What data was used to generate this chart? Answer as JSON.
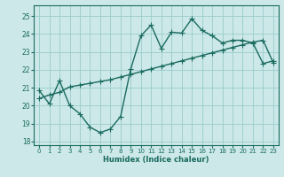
{
  "xlabel": "Humidex (Indice chaleur)",
  "xlim": [
    -0.5,
    23.5
  ],
  "ylim": [
    17.8,
    25.6
  ],
  "yticks": [
    18,
    19,
    20,
    21,
    22,
    23,
    24,
    25
  ],
  "xticks": [
    0,
    1,
    2,
    3,
    4,
    5,
    6,
    7,
    8,
    9,
    10,
    11,
    12,
    13,
    14,
    15,
    16,
    17,
    18,
    19,
    20,
    21,
    22,
    23
  ],
  "bg_color": "#cce8e8",
  "grid_color": "#99cccc",
  "line_color": "#1a6b60",
  "line1_x": [
    0,
    1,
    2,
    3,
    4,
    5,
    6,
    7,
    8,
    9,
    10,
    11,
    12,
    13,
    14,
    15,
    16,
    17,
    18,
    19,
    20,
    21,
    22,
    23
  ],
  "line1_y": [
    20.85,
    20.1,
    21.4,
    20.0,
    19.55,
    18.8,
    18.5,
    18.7,
    19.4,
    22.05,
    23.9,
    24.5,
    23.2,
    24.1,
    24.05,
    24.85,
    24.2,
    23.9,
    23.5,
    23.65,
    23.65,
    23.5,
    22.35,
    22.5
  ],
  "line2_x": [
    0,
    1,
    2,
    3,
    4,
    5,
    6,
    7,
    8,
    9,
    10,
    11,
    12,
    13,
    14,
    15,
    16,
    17,
    18,
    19,
    20,
    21,
    22,
    23
  ],
  "line2_y": [
    20.4,
    20.6,
    20.75,
    21.05,
    21.15,
    21.25,
    21.35,
    21.45,
    21.6,
    21.75,
    21.9,
    22.05,
    22.2,
    22.35,
    22.5,
    22.65,
    22.8,
    22.95,
    23.1,
    23.25,
    23.4,
    23.55,
    23.65,
    22.4
  ],
  "markersize": 2.5,
  "linewidth": 1.0
}
